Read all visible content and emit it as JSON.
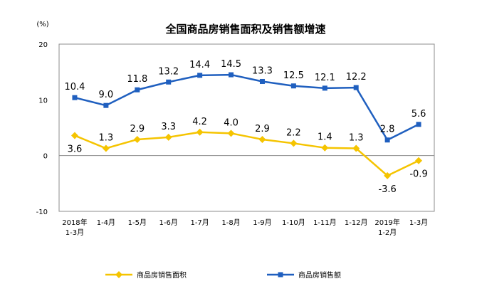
{
  "chart_data": {
    "type": "line",
    "title": "全国商品房销售面积及销售额增速",
    "unit": "(%)",
    "categories": [
      [
        "2018年",
        "1-3月"
      ],
      [
        "1-4月"
      ],
      [
        "1-5月"
      ],
      [
        "1-6月"
      ],
      [
        "1-7月"
      ],
      [
        "1-8月"
      ],
      [
        "1-9月"
      ],
      [
        "1-10月"
      ],
      [
        "1-11月"
      ],
      [
        "1-12月"
      ],
      [
        "2019年",
        "1-2月"
      ],
      [
        "1-3月"
      ]
    ],
    "ylim": [
      -10,
      20
    ],
    "yticks": [
      "20",
      "10",
      "0",
      "-10"
    ],
    "grid": false,
    "legend_position": "bottom",
    "series": [
      {
        "name": "商品房销售面积",
        "color": "#f5c400",
        "marker": "diamond",
        "values": [
          3.6,
          1.3,
          2.9,
          3.3,
          4.2,
          4.0,
          2.9,
          2.2,
          1.4,
          1.3,
          -3.6,
          -0.9
        ],
        "labels": [
          "3.6",
          "1.3",
          "2.9",
          "3.3",
          "4.2",
          "4.0",
          "2.9",
          "2.2",
          "1.4",
          "1.3",
          "-3.6",
          "-0.9"
        ]
      },
      {
        "name": "商品房销售额",
        "color": "#1f5fbf",
        "marker": "square",
        "values": [
          10.4,
          9.0,
          11.8,
          13.2,
          14.4,
          14.5,
          13.3,
          12.5,
          12.1,
          12.2,
          2.8,
          5.6
        ],
        "labels": [
          "10.4",
          "9.0",
          "11.8",
          "13.2",
          "14.4",
          "14.5",
          "13.3",
          "12.5",
          "12.1",
          "12.2",
          "2.8",
          "5.6"
        ]
      }
    ]
  }
}
